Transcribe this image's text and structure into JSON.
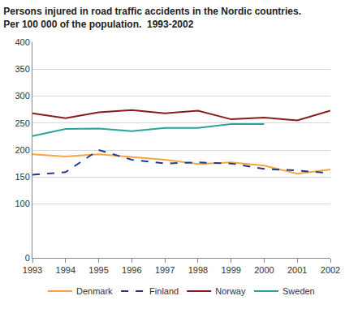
{
  "chart_data": {
    "type": "line",
    "title": "Persons injured in road traffic accidents in the Nordic countries.",
    "subtitle": "Per 100 000 of the population.  1993-2002",
    "categories": [
      "1993",
      "1994",
      "1995",
      "1996",
      "1997",
      "1998",
      "1999",
      "2000",
      "2001",
      "2002"
    ],
    "series": [
      {
        "name": "Denmark",
        "color": "#f5a540",
        "line_style": "solid",
        "values": [
          192,
          188,
          192,
          187,
          182,
          174,
          177,
          171,
          156,
          164
        ]
      },
      {
        "name": "Finland",
        "color": "#1f3a8a",
        "line_style": "dash",
        "values": [
          154,
          159,
          200,
          182,
          175,
          177,
          175,
          165,
          162,
          157
        ]
      },
      {
        "name": "Norway",
        "color": "#8b1a1a",
        "line_style": "solid",
        "values": [
          268,
          259,
          270,
          274,
          268,
          273,
          257,
          260,
          255,
          273
        ]
      },
      {
        "name": "Sweden",
        "color": "#2aa39c",
        "line_style": "solid",
        "values": [
          226,
          239,
          240,
          235,
          241,
          241,
          248,
          248,
          null,
          null
        ]
      }
    ],
    "ylim": [
      0,
      400
    ],
    "yticks": [
      0,
      100,
      150,
      200,
      250,
      300,
      350,
      400
    ],
    "grid": true,
    "legend": "bottom"
  }
}
